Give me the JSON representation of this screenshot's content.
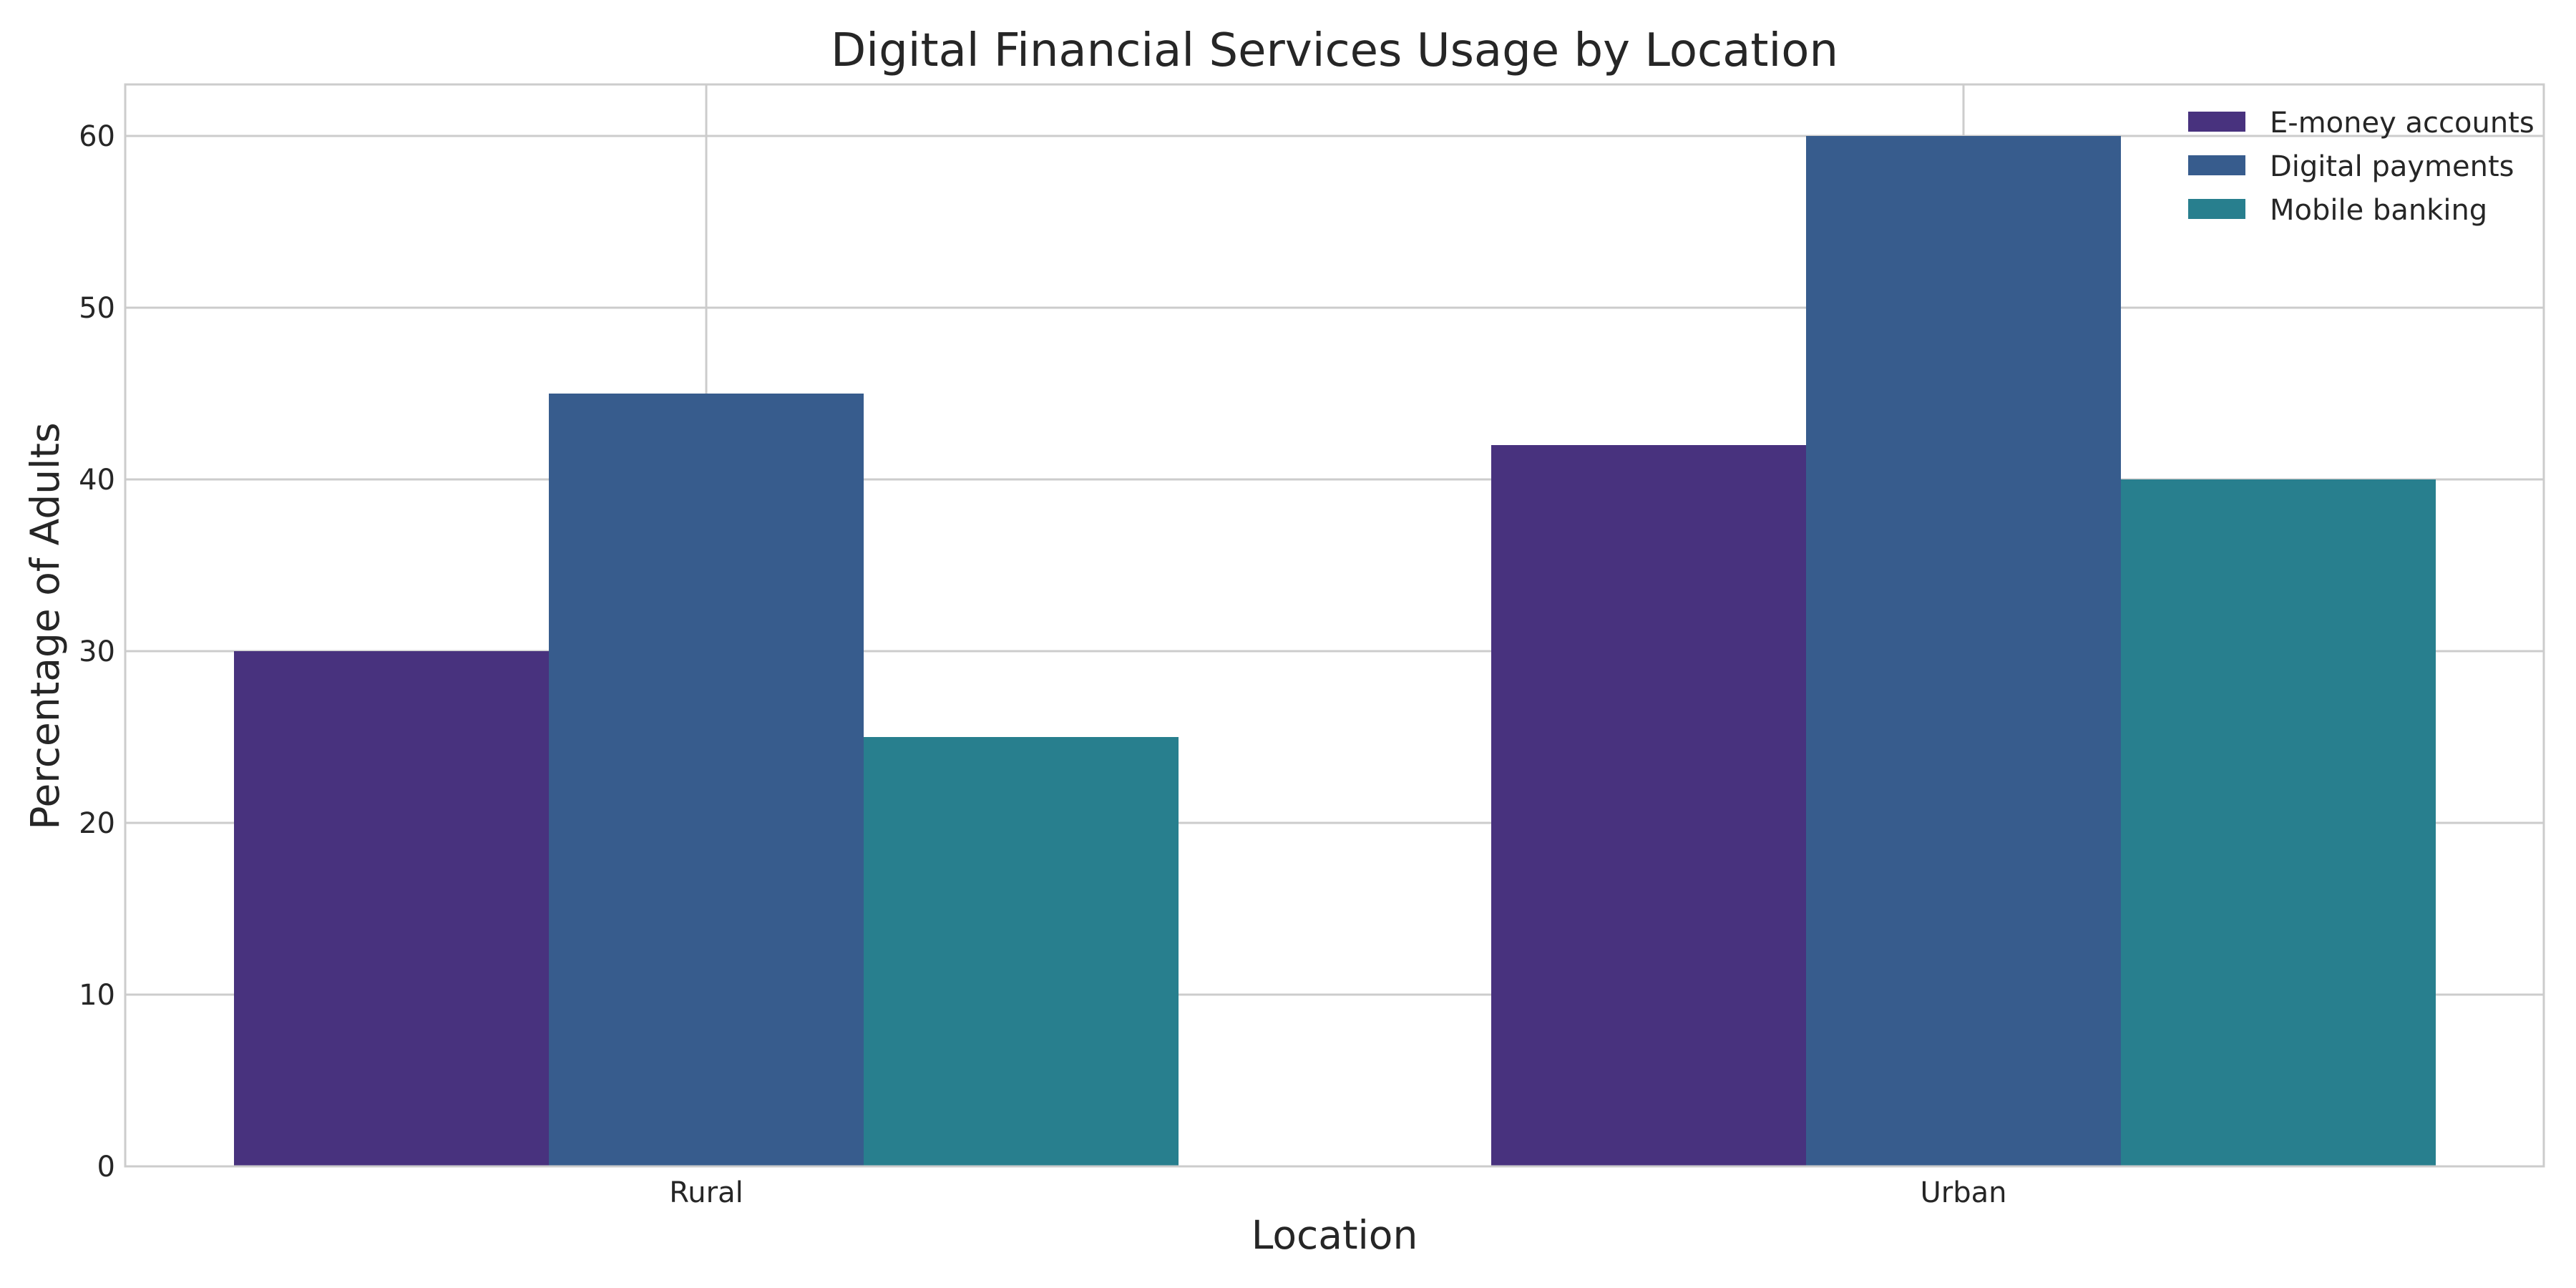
{
  "chart_data": {
    "type": "bar",
    "title": "Digital Financial Services Usage by Location",
    "xlabel": "Location",
    "ylabel": "Percentage of Adults",
    "categories": [
      "Rural",
      "Urban"
    ],
    "series": [
      {
        "name": "E-money accounts",
        "values": [
          30,
          42
        ],
        "color": "#48327e"
      },
      {
        "name": "Digital payments",
        "values": [
          45,
          60
        ],
        "color": "#375c8d"
      },
      {
        "name": "Mobile banking",
        "values": [
          25,
          40
        ],
        "color": "#287f8e"
      }
    ],
    "ylim": [
      0,
      63
    ],
    "yticks": [
      0,
      10,
      20,
      30,
      40,
      50,
      60
    ],
    "grid": true,
    "legend_position": "top-right"
  }
}
